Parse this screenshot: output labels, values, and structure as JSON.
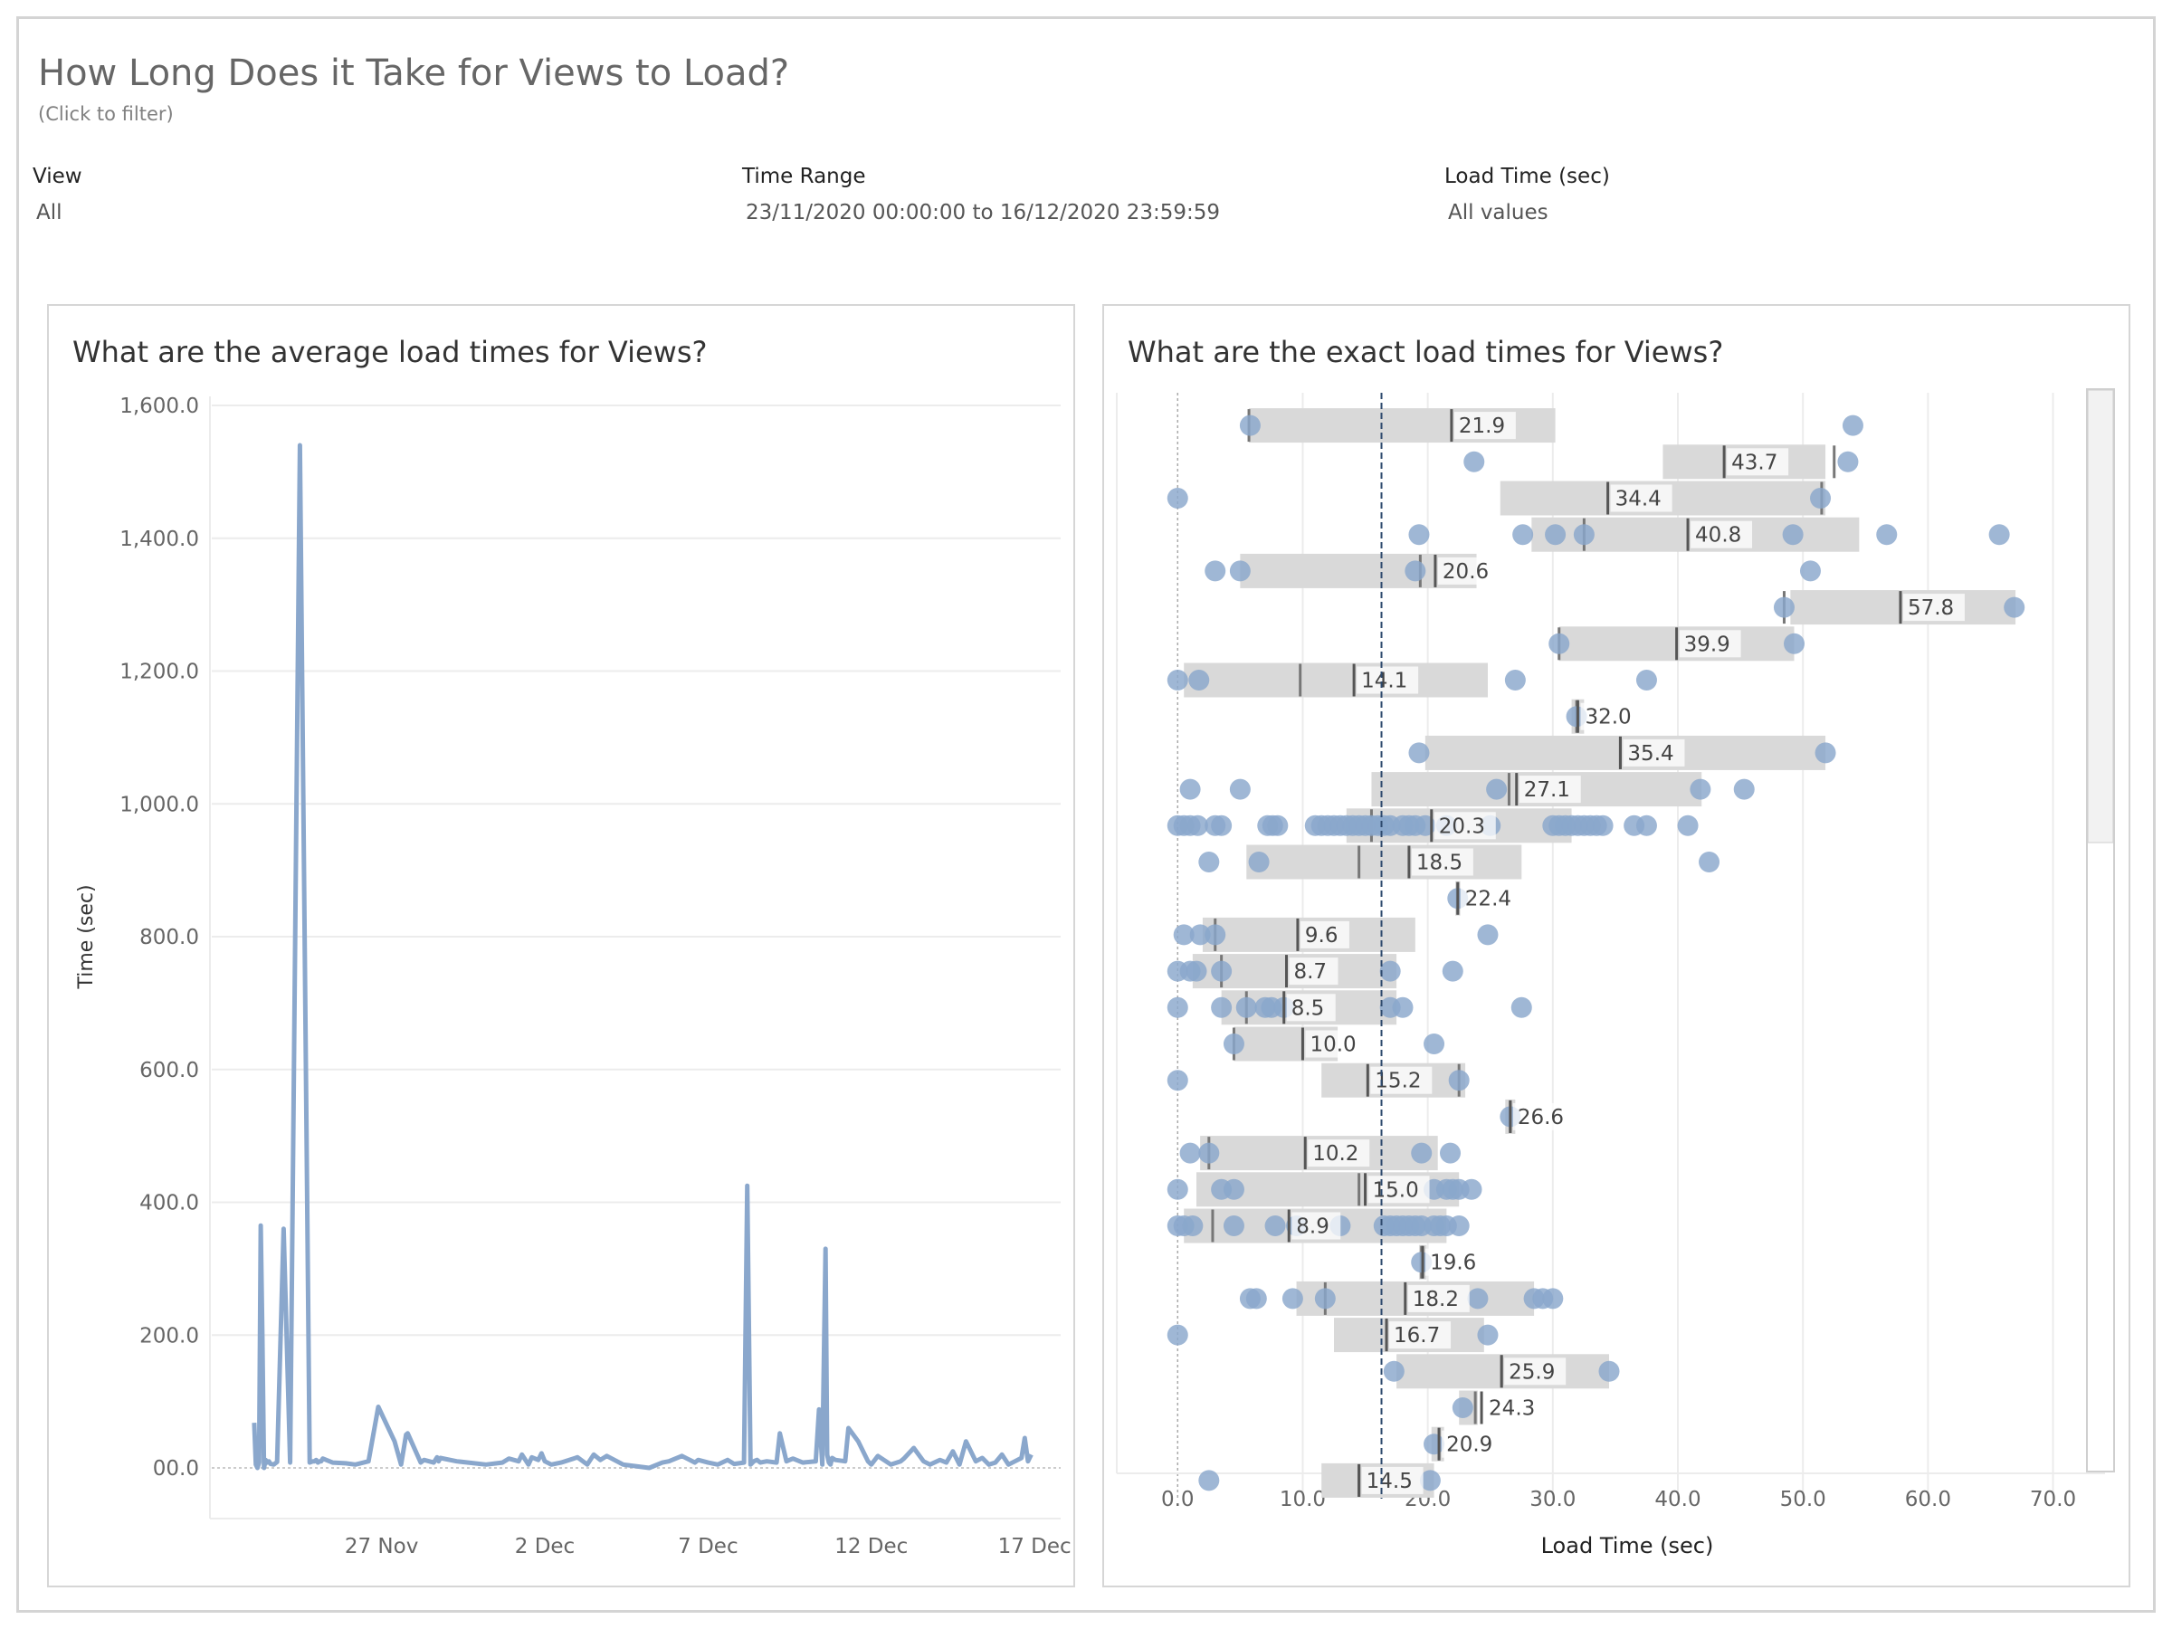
{
  "dashboard": {
    "title": "How Long Does it Take for Views to Load?",
    "subtitle": "(Click to filter)",
    "filters": [
      {
        "label": "View",
        "value": "All"
      },
      {
        "label": "Time Range",
        "value": "23/11/2020 00:00:00 to 16/12/2020 23:59:59"
      },
      {
        "label": "Load Time (sec)",
        "value": "All values"
      }
    ]
  },
  "colors": {
    "mark": "#8aa7cc",
    "mark_light": "#b3c6df",
    "band": "#d9d9d9",
    "median": "#777777",
    "reference": "#2e4a6e"
  },
  "chart_data": [
    {
      "type": "line",
      "title": "What are the average load times for Views?",
      "xlabel": "",
      "ylabel": "Time (sec)",
      "ylim": [
        0,
        1600
      ],
      "yticks": [
        "1,600.0",
        "1,400.0",
        "1,200.0",
        "1,000.0",
        "800.0",
        "600.0",
        "400.0",
        "200.0",
        "00.0"
      ],
      "xticks": [
        "27 Nov",
        "2 Dec",
        "7 Dec",
        "12 Dec",
        "17 Dec"
      ],
      "xtick_days": [
        27,
        32,
        37,
        42,
        47
      ],
      "xlim_days": [
        21.8,
        47.8
      ],
      "grid": true,
      "series": [
        {
          "x_days": [
            23.1,
            23.15,
            23.2,
            23.25,
            23.3,
            23.35,
            23.4,
            23.45,
            23.5,
            23.55,
            23.6,
            23.7,
            23.8,
            24,
            24.2,
            24.5,
            24.8,
            24.9,
            24.95,
            25,
            25.05,
            25.1,
            25.15,
            25.2,
            25.5,
            25.9,
            26.2,
            26.6,
            26.9,
            27.4,
            27.6,
            27.75,
            27.8,
            28.2,
            28.3,
            28.6,
            28.7,
            28.75,
            28.8,
            29.3,
            30.2,
            30.7,
            30.9,
            31.2,
            31.3,
            31.5,
            31.6,
            31.8,
            31.9,
            32,
            32.2,
            32.5,
            33,
            33.3,
            33.5,
            33.7,
            33.9,
            34.4,
            35.2,
            35.6,
            35.8,
            36.2,
            36.6,
            36.7,
            37,
            37.3,
            37.6,
            37.8,
            38.1,
            38.2,
            38.3,
            38.4,
            38.5,
            38.6,
            38.8,
            39.1,
            39.2,
            39.4,
            39.6,
            39.9,
            40.3,
            40.4,
            40.5,
            40.6,
            40.65,
            40.7,
            40.75,
            40.8,
            40.9,
            41.2,
            41.3,
            41.6,
            41.9,
            42,
            42.2,
            42.6,
            42.9,
            43,
            43.3,
            43.6,
            43.8,
            44.1,
            44.3,
            44.5,
            44.7,
            44.9,
            45.2,
            45.4,
            45.6,
            45.8,
            46,
            46.2,
            46.4,
            46.6,
            46.7,
            46.8,
            46.9
          ],
          "values": [
            68,
            5,
            0,
            8,
            365,
            200,
            0,
            12,
            8,
            10,
            6,
            5,
            9,
            360,
            8,
            1540,
            8,
            10,
            10,
            12,
            8,
            10,
            10,
            14,
            8,
            7,
            5,
            10,
            92,
            40,
            5,
            50,
            52,
            8,
            12,
            8,
            16,
            10,
            15,
            10,
            5,
            8,
            14,
            10,
            20,
            5,
            16,
            12,
            22,
            10,
            5,
            8,
            16,
            5,
            20,
            12,
            18,
            5,
            0,
            8,
            10,
            18,
            8,
            12,
            8,
            5,
            12,
            6,
            8,
            425,
            5,
            10,
            12,
            8,
            10,
            8,
            52,
            10,
            14,
            8,
            10,
            88,
            5,
            330,
            20,
            8,
            5,
            15,
            12,
            10,
            60,
            40,
            10,
            5,
            18,
            5,
            10,
            14,
            30,
            10,
            5,
            12,
            8,
            25,
            5,
            40,
            10,
            15,
            5,
            8,
            20,
            5,
            10,
            15,
            45,
            10,
            20
          ]
        }
      ]
    },
    {
      "type": "scatter",
      "title": "What are the exact load times for Views?",
      "xlabel": "Load Time (sec)",
      "ylabel": "",
      "xlim": [
        -4,
        73
      ],
      "xticks": [
        "0.0",
        "10.0",
        "20.0",
        "30.0",
        "40.0",
        "50.0",
        "60.0",
        "70.0"
      ],
      "reference_line": 16.3,
      "rows": [
        {
          "label": "21.9",
          "value": 21.9,
          "band": [
            5.7,
            30.2
          ],
          "median": 5.7,
          "points": [
            5.8,
            54
          ]
        },
        {
          "label": "43.7",
          "value": 43.7,
          "band": [
            38.8,
            51.8
          ],
          "median": 52.5,
          "points": [
            23.7,
            53.6
          ]
        },
        {
          "label": "34.4",
          "value": 34.4,
          "band": [
            25.8,
            51.8
          ],
          "median": 51.5,
          "points": [
            0,
            51.4
          ]
        },
        {
          "label": "40.8",
          "value": 40.8,
          "band": [
            28.3,
            54.5
          ],
          "median": 32.5,
          "points": [
            19.3,
            27.6,
            30.2,
            32.5,
            49.2,
            56.7,
            65.7
          ]
        },
        {
          "label": "20.6",
          "value": 20.6,
          "band": [
            5.0,
            23.9
          ],
          "median": 19.4,
          "points": [
            3,
            5,
            19,
            50.6
          ]
        },
        {
          "label": "57.8",
          "value": 57.8,
          "band": [
            49.0,
            67.0
          ],
          "median": 48.5,
          "points": [
            48.5,
            66.9
          ]
        },
        {
          "label": "39.9",
          "value": 39.9,
          "band": [
            30.5,
            49.3
          ],
          "median": 30.5,
          "points": [
            30.5,
            49.3
          ]
        },
        {
          "label": "14.1",
          "value": 14.1,
          "band": [
            0.5,
            24.8
          ],
          "median": 9.8,
          "points": [
            0,
            1.7,
            27,
            37.5
          ]
        },
        {
          "label": "32.0",
          "value": 32.0,
          "band": [
            31.5,
            32.5
          ],
          "median": 31.9,
          "points": [
            31.9
          ]
        },
        {
          "label": "35.4",
          "value": 35.4,
          "band": [
            19.8,
            51.8
          ],
          "median": 35.4,
          "points": [
            19.3,
            51.8
          ]
        },
        {
          "label": "27.1",
          "value": 27.1,
          "band": [
            15.5,
            41.9
          ],
          "median": 26.5,
          "points": [
            1,
            5,
            25.5,
            41.8,
            45.3
          ]
        },
        {
          "label": "20.3",
          "value": 20.3,
          "band": [
            13.5,
            31.5
          ],
          "median": 15.5,
          "points": [
            0,
            0.5,
            1,
            1.6,
            3,
            3.5,
            7.2,
            7.6,
            8,
            11,
            11.5,
            12,
            12.5,
            13,
            13.5,
            14,
            14.5,
            15,
            15.5,
            16,
            16.5,
            17,
            18,
            18.5,
            19,
            19.8,
            21.5,
            25,
            30,
            30.5,
            31,
            31.5,
            32,
            32.5,
            33,
            33.5,
            34,
            36.5,
            37.5,
            40.8
          ]
        },
        {
          "label": "18.5",
          "value": 18.5,
          "band": [
            5.5,
            27.5
          ],
          "median": 14.5,
          "points": [
            2.5,
            6.5,
            42.5
          ]
        },
        {
          "label": "22.4",
          "value": 22.4,
          "band": [
            22.2,
            22.6
          ],
          "median": 22.4,
          "points": [
            22.4
          ]
        },
        {
          "label": "9.6",
          "value": 9.6,
          "band": [
            2.0,
            19.0
          ],
          "median": 3,
          "points": [
            0.5,
            1.8,
            3,
            24.8
          ]
        },
        {
          "label": "8.7",
          "value": 8.7,
          "band": [
            1.2,
            17.5
          ],
          "median": 3.5,
          "points": [
            0,
            1,
            1.5,
            3.5,
            17,
            22
          ]
        },
        {
          "label": "8.5",
          "value": 8.5,
          "band": [
            3.5,
            17.5
          ],
          "median": 5.5,
          "points": [
            0,
            3.5,
            5.5,
            7,
            7.5,
            8.5,
            17,
            18,
            27.5
          ]
        },
        {
          "label": "10.0",
          "value": 10.0,
          "band": [
            4.5,
            12.8
          ],
          "median": 4.5,
          "points": [
            4.5,
            20.5
          ]
        },
        {
          "label": "15.2",
          "value": 15.2,
          "band": [
            11.5,
            23.0
          ],
          "median": 22.5,
          "points": [
            0,
            22.5
          ]
        },
        {
          "label": "26.6",
          "value": 26.6,
          "band": [
            26.2,
            27.0
          ],
          "median": 26.6,
          "points": [
            26.6
          ]
        },
        {
          "label": "10.2",
          "value": 10.2,
          "band": [
            1.8,
            20.8
          ],
          "median": 2.5,
          "points": [
            1,
            2.5,
            19.5,
            21.8
          ]
        },
        {
          "label": "15.0",
          "value": 15.0,
          "band": [
            1.5,
            22.5
          ],
          "median": 14.5,
          "points": [
            0,
            3.5,
            4.5,
            20.5,
            21.5,
            22,
            22.5,
            23.5
          ]
        },
        {
          "label": "8.9",
          "value": 8.9,
          "band": [
            0.5,
            21.5
          ],
          "median": 2.8,
          "points": [
            0,
            0.5,
            1.2,
            4.5,
            7.8,
            9.5,
            13,
            16.5,
            17,
            17.5,
            18,
            18.5,
            19,
            19.5,
            20.5,
            21,
            21.5,
            22.5
          ]
        },
        {
          "label": "19.6",
          "value": 19.6,
          "band": [
            19.3,
            19.9
          ],
          "median": 19.5,
          "points": [
            19.5
          ]
        },
        {
          "label": "18.2",
          "value": 18.2,
          "band": [
            9.5,
            28.5
          ],
          "median": 11.8,
          "points": [
            5.8,
            6.3,
            9.2,
            11.8,
            24,
            28.5,
            29.2,
            30
          ]
        },
        {
          "label": "16.7",
          "value": 16.7,
          "band": [
            12.5,
            24.5
          ],
          "median": 16.7,
          "points": [
            0,
            24.8
          ]
        },
        {
          "label": "25.9",
          "value": 25.9,
          "band": [
            17.5,
            34.5
          ],
          "median": 25.9,
          "points": [
            17.3,
            34.5
          ]
        },
        {
          "label": "24.3",
          "value": 24.3,
          "band": [
            22.5,
            24.0
          ],
          "median": 23.8,
          "points": [
            22.8
          ]
        },
        {
          "label": "20.9",
          "value": 20.9,
          "band": [
            20.3,
            21.3
          ],
          "median": 20.9,
          "points": [
            20.5
          ]
        },
        {
          "label": "14.5",
          "value": 14.5,
          "band": [
            11.5,
            20.5
          ],
          "median": 14.5,
          "points": [
            2.5,
            20.2
          ]
        }
      ]
    }
  ]
}
